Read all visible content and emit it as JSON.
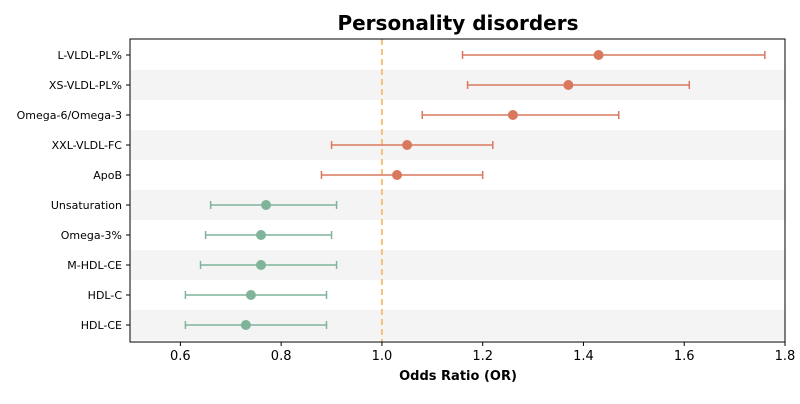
{
  "chart_data": {
    "type": "forest",
    "title": "Personality disorders",
    "xlabel": "Odds Ratio (OR)",
    "xlim": [
      0.5,
      1.8
    ],
    "xticks": [
      0.6,
      0.8,
      1.0,
      1.2,
      1.4,
      1.6,
      1.8
    ],
    "xtick_labels": [
      "0.6",
      "0.8",
      "1.0",
      "1.2",
      "1.4",
      "1.6",
      "1.8"
    ],
    "reference_line": 1.0,
    "colors": {
      "risk": "#d9785e",
      "protective": "#7fb39a",
      "reference_line": "#f5c07a",
      "band": "#f4f4f4",
      "axis": "#000000"
    },
    "rows": [
      {
        "label": "L-VLDL-PL%",
        "or": 1.43,
        "lower": 1.16,
        "upper": 1.76,
        "group": "risk"
      },
      {
        "label": "XS-VLDL-PL%",
        "or": 1.37,
        "lower": 1.17,
        "upper": 1.61,
        "group": "risk"
      },
      {
        "label": "Omega-6/Omega-3",
        "or": 1.26,
        "lower": 1.08,
        "upper": 1.47,
        "group": "risk"
      },
      {
        "label": "XXL-VLDL-FC",
        "or": 1.05,
        "lower": 0.9,
        "upper": 1.22,
        "group": "risk"
      },
      {
        "label": "ApoB",
        "or": 1.03,
        "lower": 0.88,
        "upper": 1.2,
        "group": "risk"
      },
      {
        "label": "Unsaturation",
        "or": 0.77,
        "lower": 0.66,
        "upper": 0.91,
        "group": "protective"
      },
      {
        "label": "Omega-3%",
        "or": 0.76,
        "lower": 0.65,
        "upper": 0.9,
        "group": "protective"
      },
      {
        "label": "M-HDL-CE",
        "or": 0.76,
        "lower": 0.64,
        "upper": 0.91,
        "group": "protective"
      },
      {
        "label": "HDL-C",
        "or": 0.74,
        "lower": 0.61,
        "upper": 0.89,
        "group": "protective"
      },
      {
        "label": "HDL-CE",
        "or": 0.73,
        "lower": 0.61,
        "upper": 0.89,
        "group": "protective"
      }
    ]
  }
}
